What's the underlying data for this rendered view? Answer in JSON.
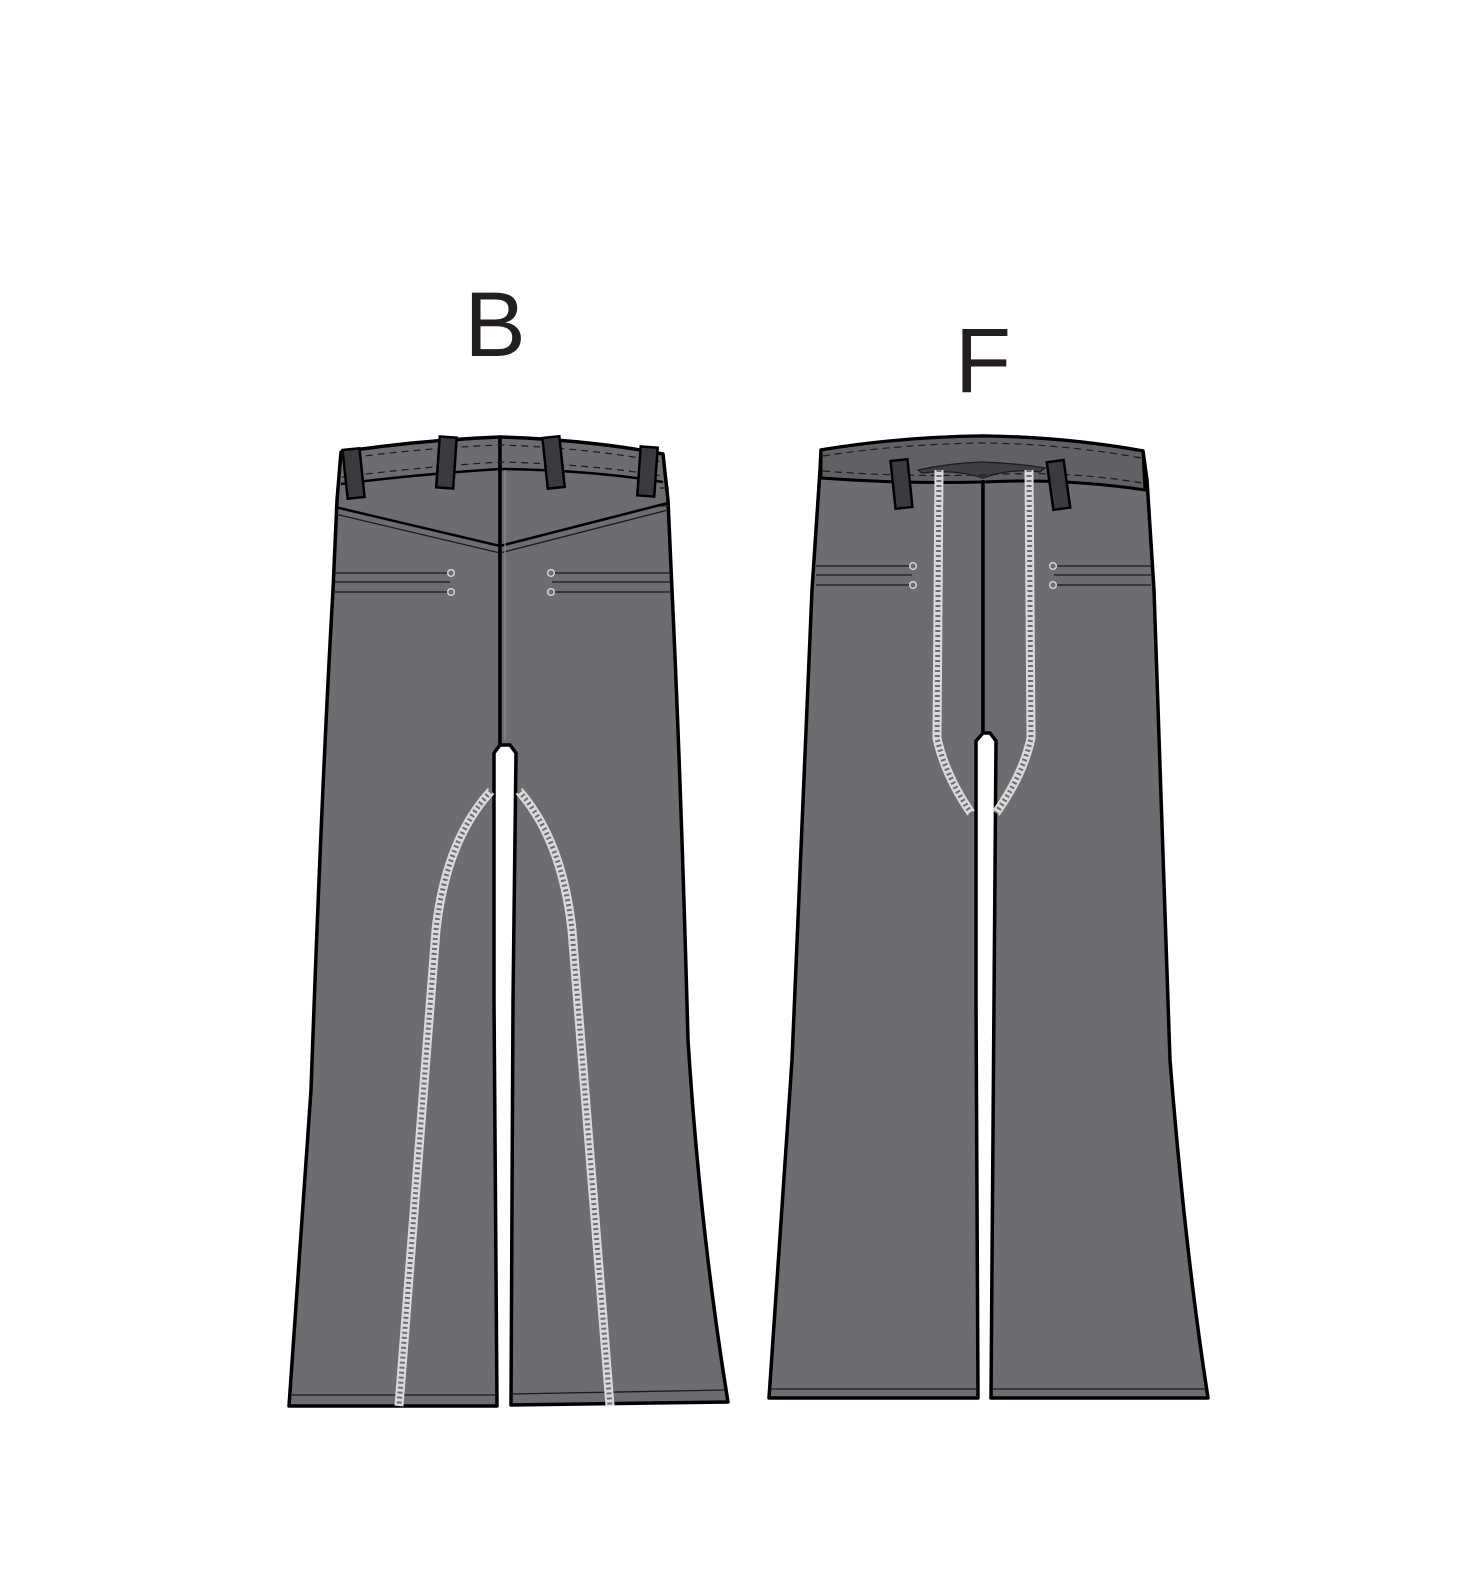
{
  "views": [
    {
      "id": "back",
      "label": "B"
    },
    {
      "id": "front",
      "label": "F"
    }
  ],
  "colors": {
    "garment": "#6b6d70",
    "waistband_front": "#5f6164",
    "inner_waist": "#3e3f42",
    "outline": "#000000",
    "tape": "#d8d9db",
    "label_text": "#231f20",
    "background": "#ffffff"
  }
}
